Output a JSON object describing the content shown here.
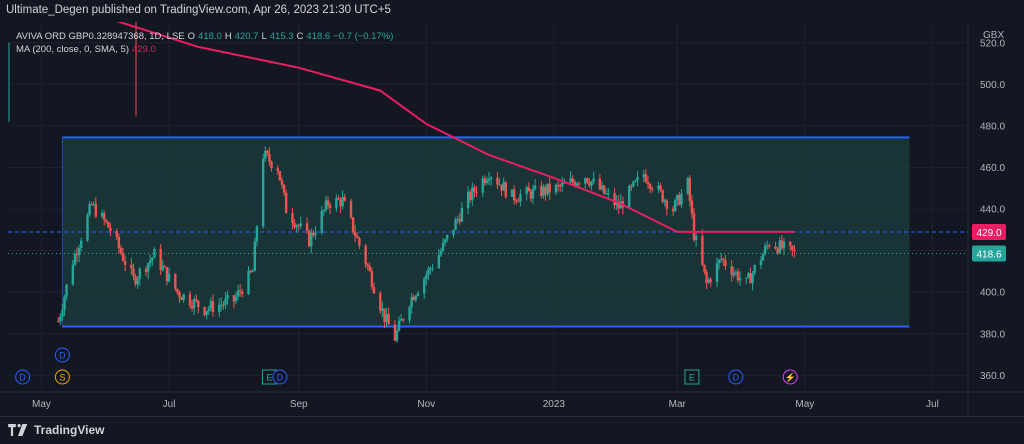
{
  "publisher_line": "Ultimate_Degen published on TradingView.com, Apr 26, 2023 21:30 UTC+5",
  "legend": {
    "symbol": "AVIVA ORD GBP0.328947368, 1D, LSE",
    "o_key": "O",
    "o_val": "418.0",
    "h_key": "H",
    "h_val": "420.7",
    "l_key": "L",
    "l_val": "415.3",
    "c_key": "C",
    "c_val": "418.6",
    "change": "−0.7 (−0.17%)",
    "ma_label": "MA (200, close, 0, SMA, 5)",
    "ma_value": "429.0"
  },
  "currency": "GBX",
  "brand": "TradingView",
  "colors": {
    "background": "#131722",
    "up": "#26a69a",
    "down": "#ef5350",
    "ma": "#e91e63",
    "channel_line": "#2962ff",
    "channel_fill": "#1b3a3a",
    "dashed_level": "#2962ff",
    "ma_label_bg": "#e91e63",
    "price_label_bg": "#26a69a"
  },
  "chart_data": {
    "type": "candlestick",
    "ylim": [
      352,
      530
    ],
    "y_ticks": [
      "360.0",
      "380.0",
      "400.0",
      "420.0",
      "440.0",
      "460.0",
      "480.0",
      "500.0",
      "520.0"
    ],
    "x_ticks": [
      {
        "label": "May",
        "date": "2022-05"
      },
      {
        "label": "Jul",
        "date": "2022-07"
      },
      {
        "label": "Sep",
        "date": "2022-09"
      },
      {
        "label": "Nov",
        "date": "2022-11"
      },
      {
        "label": "2023",
        "date": "2023-01"
      },
      {
        "label": "Mar",
        "date": "2023-03"
      },
      {
        "label": "May",
        "date": "2023-05"
      },
      {
        "label": "Jul",
        "date": "2023-07"
      }
    ],
    "channel": {
      "upper": 474.5,
      "lower": 383.5,
      "start": "2022-05-11",
      "end": "2023-06-20"
    },
    "dashed_level": 429.0,
    "last_price_label": "418.6",
    "last_price": 418.6,
    "ma_label": "429.0",
    "ma_200": [
      {
        "date": "2022-06-01",
        "y": 532
      },
      {
        "date": "2022-07-15",
        "y": 518
      },
      {
        "date": "2022-09-01",
        "y": 508
      },
      {
        "date": "2022-10-10",
        "y": 497
      },
      {
        "date": "2022-11-01",
        "y": 481
      },
      {
        "date": "2022-12-01",
        "y": 466
      },
      {
        "date": "2023-01-01",
        "y": 455
      },
      {
        "date": "2023-02-01",
        "y": 443
      },
      {
        "date": "2023-03-01",
        "y": 429
      },
      {
        "date": "2023-04-01",
        "y": 429
      },
      {
        "date": "2023-04-26",
        "y": 429
      }
    ],
    "price_path": [
      {
        "date": "2022-05-09",
        "y": 386
      },
      {
        "date": "2022-05-16",
        "y": 415
      },
      {
        "date": "2022-05-25",
        "y": 442
      },
      {
        "date": "2022-06-03",
        "y": 430
      },
      {
        "date": "2022-06-14",
        "y": 406
      },
      {
        "date": "2022-06-24",
        "y": 418
      },
      {
        "date": "2022-07-05",
        "y": 400
      },
      {
        "date": "2022-07-18",
        "y": 392
      },
      {
        "date": "2022-08-01",
        "y": 396
      },
      {
        "date": "2022-08-10",
        "y": 410
      },
      {
        "date": "2022-08-15",
        "y": 466
      },
      {
        "date": "2022-08-22",
        "y": 460
      },
      {
        "date": "2022-08-26",
        "y": 440
      },
      {
        "date": "2022-09-06",
        "y": 425
      },
      {
        "date": "2022-09-15",
        "y": 443
      },
      {
        "date": "2022-09-22",
        "y": 444
      },
      {
        "date": "2022-10-04",
        "y": 412
      },
      {
        "date": "2022-10-12",
        "y": 388
      },
      {
        "date": "2022-10-17",
        "y": 378
      },
      {
        "date": "2022-10-24",
        "y": 396
      },
      {
        "date": "2022-11-07",
        "y": 418
      },
      {
        "date": "2022-11-21",
        "y": 445
      },
      {
        "date": "2022-12-01",
        "y": 458
      },
      {
        "date": "2022-12-12",
        "y": 446
      },
      {
        "date": "2023-01-03",
        "y": 450
      },
      {
        "date": "2023-01-16",
        "y": 456
      },
      {
        "date": "2023-02-01",
        "y": 441
      },
      {
        "date": "2023-02-13",
        "y": 457
      },
      {
        "date": "2023-02-27",
        "y": 440
      },
      {
        "date": "2023-03-06",
        "y": 452
      },
      {
        "date": "2023-03-09",
        "y": 428
      },
      {
        "date": "2023-03-15",
        "y": 404
      },
      {
        "date": "2023-03-22",
        "y": 416
      },
      {
        "date": "2023-04-03",
        "y": 404
      },
      {
        "date": "2023-04-14",
        "y": 424
      },
      {
        "date": "2023-04-26",
        "y": 418.6
      }
    ],
    "markers": [
      {
        "label": "D",
        "date": "2022-05-11",
        "row": 1,
        "color": "#2962ff"
      },
      {
        "label": "D",
        "date": "2022-04-22",
        "row": 2,
        "color": "#2962ff"
      },
      {
        "label": "S",
        "date": "2022-05-11",
        "row": 2,
        "color": "#f7a600"
      },
      {
        "label": "E",
        "date": "2022-08-18",
        "row": 2,
        "color": "#26a69a"
      },
      {
        "label": "D",
        "date": "2022-08-23",
        "row": 2,
        "color": "#2962ff"
      },
      {
        "label": "E",
        "date": "2023-03-08",
        "row": 2,
        "color": "#26a69a"
      },
      {
        "label": "D",
        "date": "2023-03-29",
        "row": 2,
        "color": "#2962ff"
      },
      {
        "label": "⚡",
        "date": "2023-04-24",
        "row": 2,
        "color": "#e040fb"
      }
    ]
  }
}
